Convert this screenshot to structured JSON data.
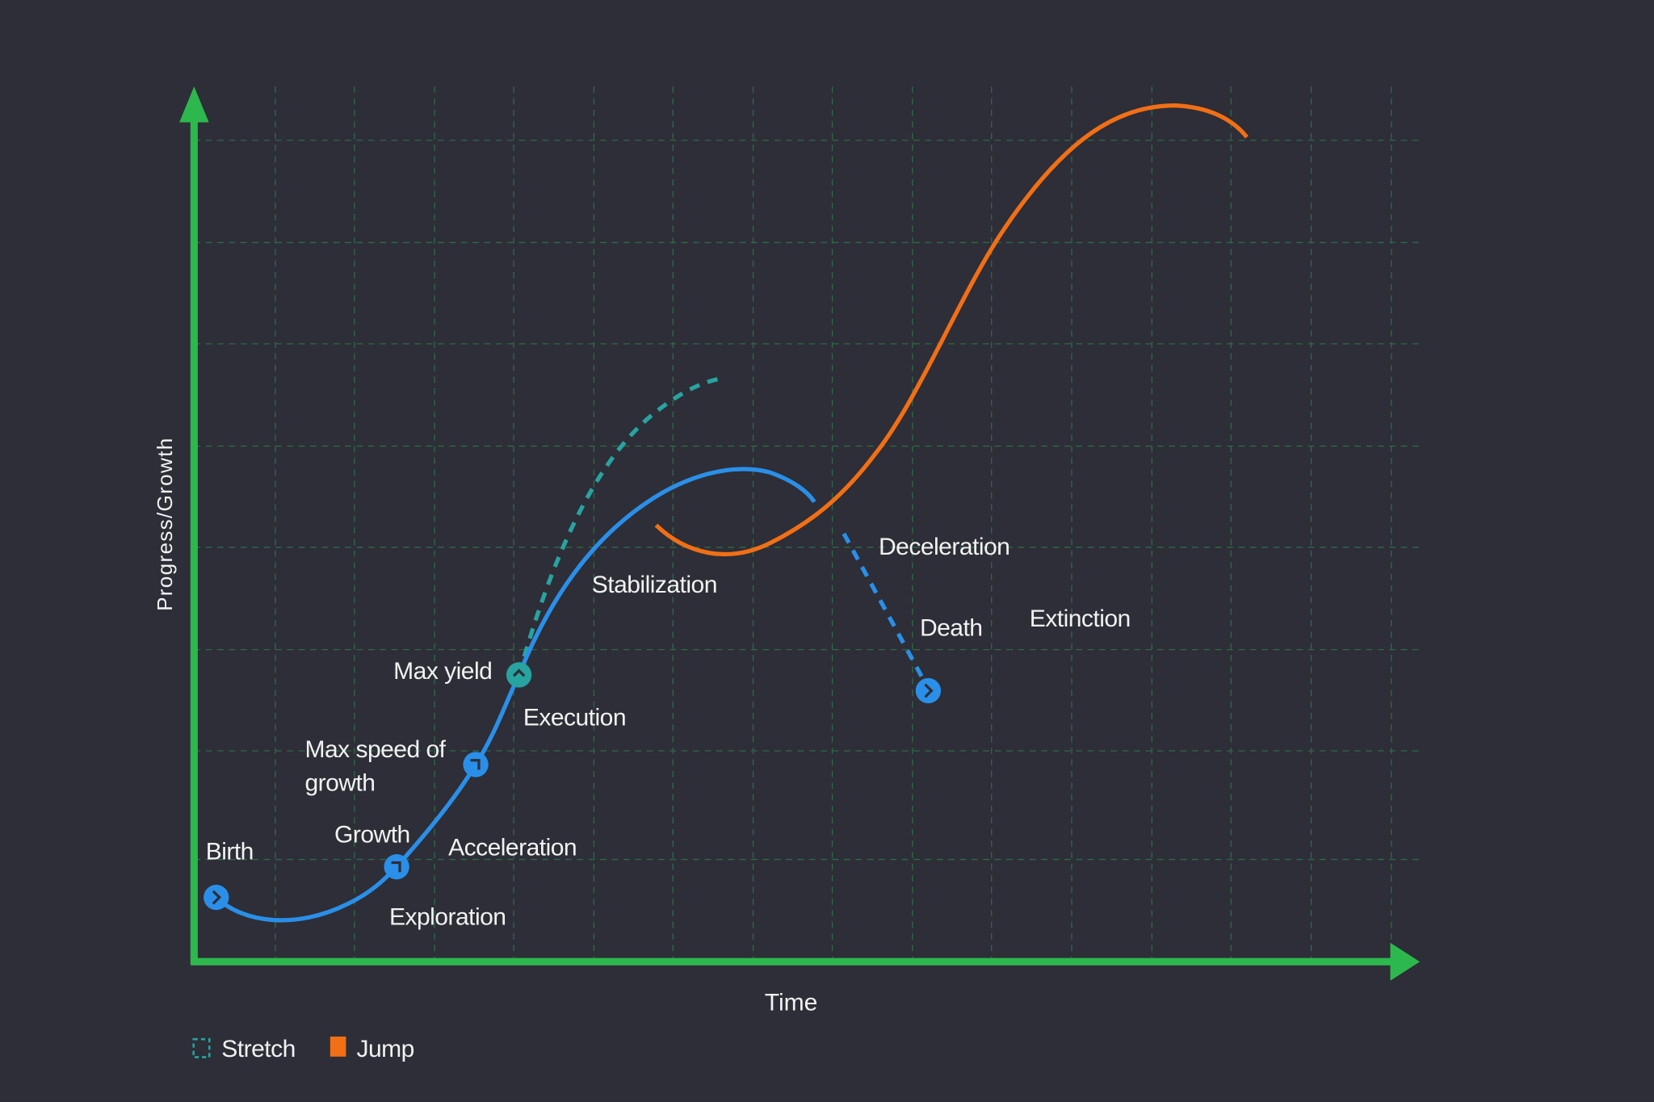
{
  "axes": {
    "y_label": "Progress/Growth",
    "x_label": "Time"
  },
  "colors": {
    "background": "#2d2e37",
    "axis": "#2db84d",
    "grid": "#2f6a45",
    "main_curve": "#2a8fe8",
    "stretch": "#27a3a0",
    "jump": "#f26f16"
  },
  "labels": {
    "birth": "Birth",
    "growth": "Growth",
    "exploration": "Exploration",
    "acceleration": "Acceleration",
    "max_speed_line1": "Max speed of",
    "max_speed_line2": "growth",
    "max_yield": "Max yield",
    "execution": "Execution",
    "stabilization": "Stabilization",
    "deceleration": "Deceleration",
    "death": "Death",
    "extinction": "Extinction"
  },
  "legend": [
    {
      "label": "Stretch",
      "style": "dashed-outline",
      "color": "#27a3a0"
    },
    {
      "label": "Jump",
      "style": "filled",
      "color": "#f26f16"
    }
  ],
  "markers": [
    {
      "name": "birth",
      "icon": "chevron-right-icon"
    },
    {
      "name": "growth",
      "icon": "corner-arrow-icon"
    },
    {
      "name": "max-speed-of-growth",
      "icon": "corner-arrow-icon"
    },
    {
      "name": "max-yield",
      "icon": "chevron-up-icon"
    },
    {
      "name": "death",
      "icon": "chevron-right-icon"
    }
  ]
}
